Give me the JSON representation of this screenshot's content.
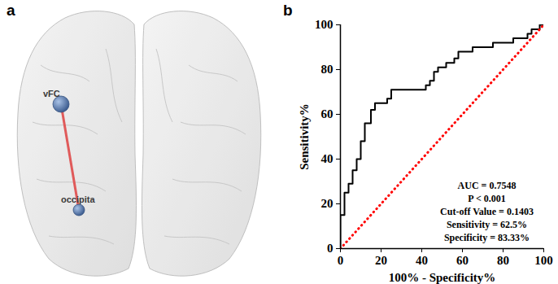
{
  "chart_data": [
    {
      "type": "diagram",
      "panel": "a",
      "nodes": [
        {
          "label": "vFC"
        },
        {
          "label": "occipita"
        }
      ],
      "edges": [
        {
          "source": "vFC",
          "target": "occipita",
          "color": "#e05a5a"
        }
      ]
    },
    {
      "type": "line",
      "panel": "b",
      "x_label": "100% - Specificity%",
      "y_label": "Sensitivity%",
      "xlim": [
        0,
        100
      ],
      "ylim": [
        0,
        100
      ],
      "xticks": [
        0,
        20,
        40,
        60,
        80,
        100
      ],
      "yticks": [
        0,
        20,
        40,
        60,
        80,
        100
      ],
      "annotations": [
        "AUC = 0.7548",
        "P < 0.001",
        "Cut-off Value = 0.1403",
        "Sensitivity = 62.5%",
        "Specificity = 83.33%"
      ],
      "series": [
        {
          "color": "#000000",
          "line_style": "solid",
          "x": [
            0,
            0,
            2,
            2,
            4,
            4,
            6,
            6,
            8,
            8,
            10,
            10,
            12,
            12,
            15,
            15,
            17,
            17,
            23,
            23,
            25,
            25,
            42,
            42,
            44,
            44,
            46,
            46,
            48,
            48,
            52,
            52,
            56,
            56,
            58,
            58,
            65,
            65,
            75,
            75,
            85,
            85,
            92,
            92,
            94,
            94,
            98,
            98,
            100
          ],
          "values": [
            0,
            15,
            15,
            25,
            25,
            29,
            29,
            35,
            35,
            40,
            40,
            48,
            48,
            56,
            56,
            62,
            62,
            65,
            65,
            67,
            67,
            71,
            71,
            73,
            73,
            75,
            75,
            79,
            79,
            81,
            81,
            83,
            83,
            85,
            85,
            88,
            88,
            90,
            90,
            92,
            92,
            94,
            94,
            96,
            96,
            98,
            98,
            100,
            100
          ]
        },
        {
          "color": "#ff0000",
          "line_style": "dotted",
          "x": [
            0,
            100
          ],
          "values": [
            0,
            100
          ]
        }
      ]
    }
  ]
}
